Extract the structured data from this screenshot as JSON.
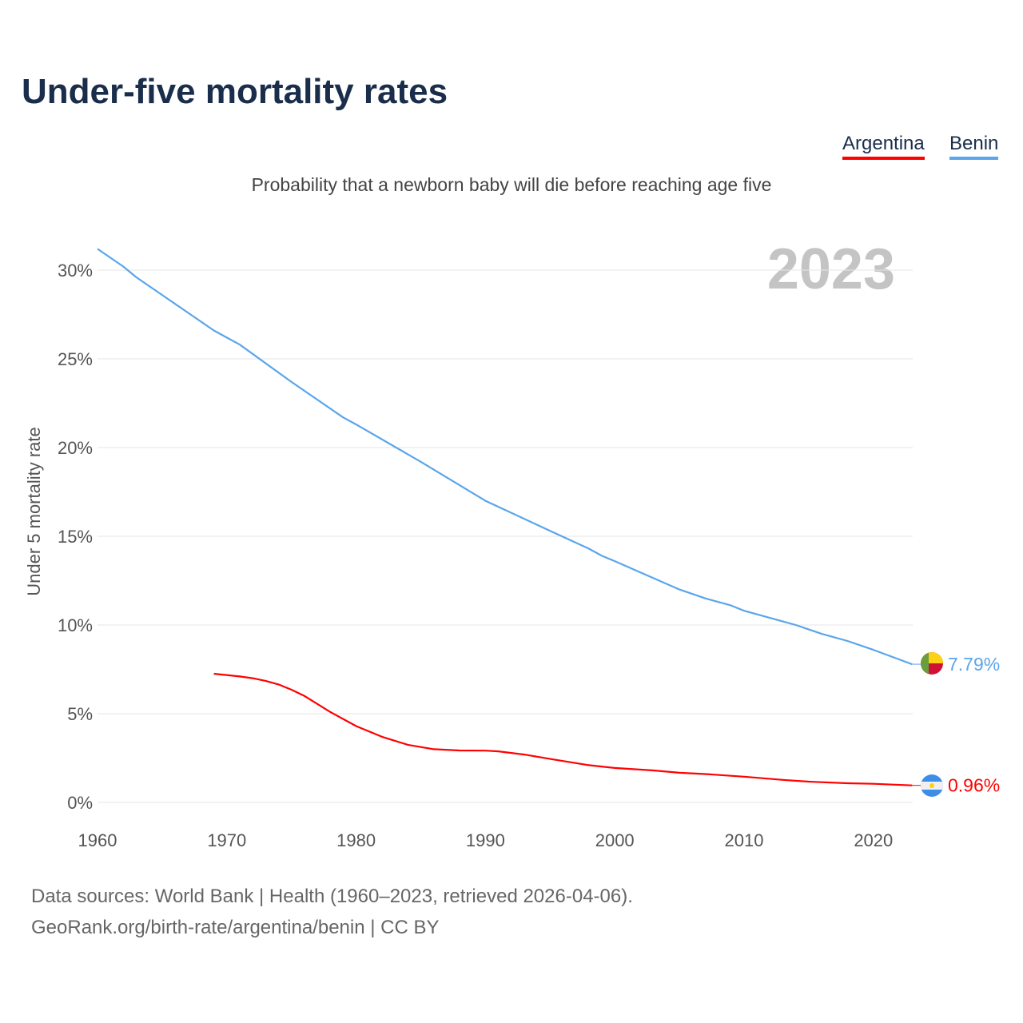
{
  "title": "Under-five mortality rates",
  "subtitle": "Probability that a newborn baby will die before reaching age five",
  "year_label": "2023",
  "sources": [
    "Data sources: World Bank | Health (1960–2023, retrieved 2026-04-06).",
    "GeoRank.org/birth-rate/argentina/benin | CC BY"
  ],
  "chart_data": {
    "type": "line",
    "title": "Under-five mortality rates",
    "ylabel": "Under 5 mortality rate",
    "xlabel": "",
    "xlim": [
      1960,
      2023
    ],
    "ylim": [
      0,
      32
    ],
    "xticks": [
      "1960",
      "1970",
      "1980",
      "1990",
      "2000",
      "2010",
      "2020"
    ],
    "yticks": [
      "0%",
      "5%",
      "10%",
      "15%",
      "20%",
      "25%",
      "30%"
    ],
    "grid": true,
    "legend": "top-right",
    "series": [
      {
        "name": "Argentina",
        "color": "#ff0000",
        "end_label": "0.96%",
        "x": [
          1969,
          1971,
          1972,
          1973,
          1974,
          1975,
          1976,
          1978,
          1980,
          1982,
          1984,
          1986,
          1988,
          1990,
          1991,
          1993,
          1995,
          1998,
          2000,
          2003,
          2005,
          2007,
          2010,
          2013,
          2015,
          2018,
          2020,
          2023
        ],
        "y": [
          7.25,
          7.1,
          7.0,
          6.85,
          6.65,
          6.35,
          6.0,
          5.1,
          4.3,
          3.7,
          3.25,
          3.0,
          2.93,
          2.92,
          2.88,
          2.7,
          2.45,
          2.1,
          1.94,
          1.8,
          1.67,
          1.6,
          1.45,
          1.27,
          1.17,
          1.08,
          1.05,
          0.96
        ]
      },
      {
        "name": "Benin",
        "color": "#5aa5ec",
        "end_label": "7.79%",
        "x": [
          1960,
          1962,
          1963,
          1964,
          1965,
          1968,
          1969,
          1970,
          1971,
          1975,
          1976,
          1979,
          1980,
          1985,
          1990,
          1995,
          1998,
          1999,
          2000,
          2005,
          2007,
          2009,
          2010,
          2013,
          2014,
          2016,
          2018,
          2020,
          2023
        ],
        "y": [
          31.2,
          30.2,
          29.6,
          29.1,
          28.6,
          27.1,
          26.6,
          26.2,
          25.8,
          23.7,
          23.2,
          21.7,
          21.3,
          19.2,
          17.0,
          15.3,
          14.3,
          13.9,
          13.6,
          12.0,
          11.5,
          11.1,
          10.8,
          10.2,
          10.0,
          9.5,
          9.1,
          8.6,
          7.79
        ]
      }
    ]
  }
}
